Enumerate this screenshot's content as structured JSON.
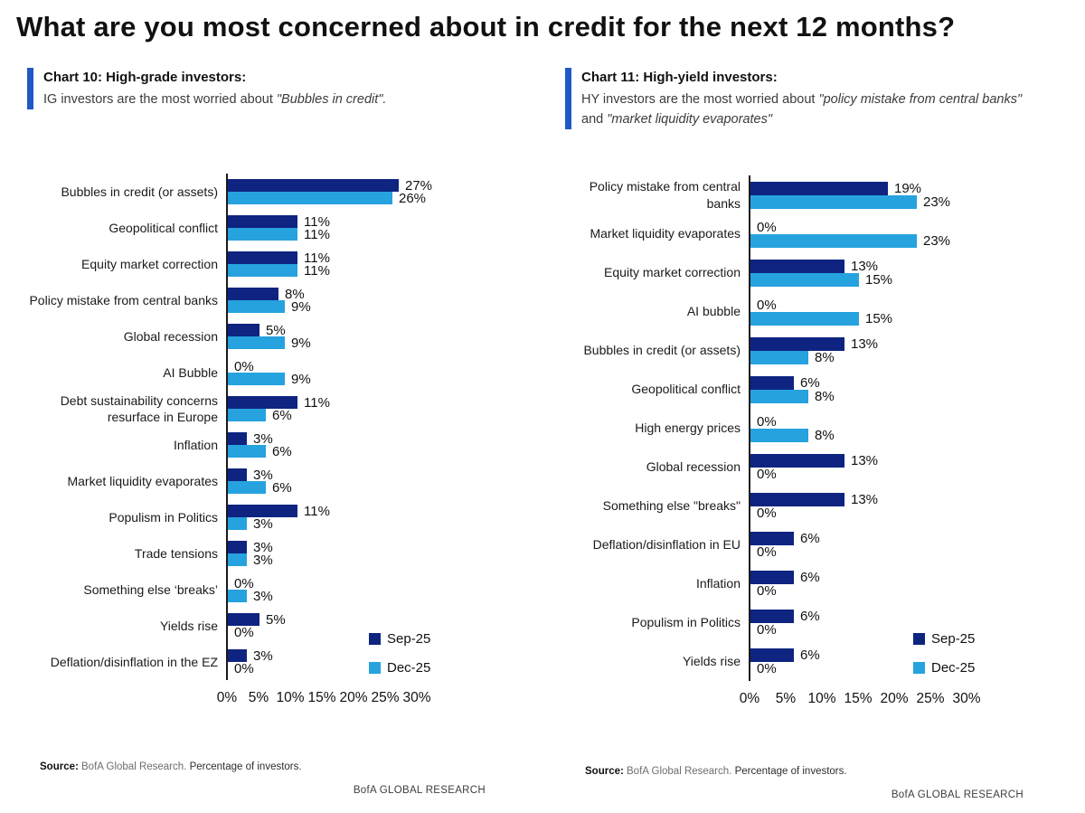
{
  "page_title": "What are you most concerned about in credit for the next 12 months?",
  "colors": {
    "sep_25_navy": "#0E2480",
    "dec_25_light_blue": "#26A2DF",
    "accent_bar_blue": "#2059C6",
    "axis_black": "#1A1A1A"
  },
  "panels": [
    {
      "heading": "Chart 10: High-grade investors:",
      "subtitle_segments": [
        {
          "text": "IG investors are the most worried about ",
          "style": ""
        },
        {
          "text": "\"Bubbles in credit\".",
          "style": "italic"
        }
      ],
      "source_segments": [
        {
          "text": "Source: ",
          "style": "bold"
        },
        {
          "text": "BofA Global Research. ",
          "style": "gray"
        },
        {
          "text": "Percentage of investors.",
          "style": ""
        }
      ],
      "brand_footer": "BofA GLOBAL RESEARCH"
    },
    {
      "heading": "Chart 11: High-yield investors:",
      "subtitle_segments": [
        {
          "text": "HY investors are the most worried about ",
          "style": ""
        },
        {
          "text": "\"policy mistake from central banks\"",
          "style": "italic"
        },
        {
          "text": " and ",
          "style": ""
        },
        {
          "text": "\"market liquidity evaporates\"",
          "style": "italic"
        }
      ],
      "source_segments": [
        {
          "text": "Source: ",
          "style": "bold"
        },
        {
          "text": "BofA Global Research. ",
          "style": "gray"
        },
        {
          "text": "Percentage of investors.",
          "style": ""
        }
      ],
      "brand_footer": "BofA GLOBAL RESEARCH"
    }
  ],
  "chart_data": [
    {
      "type": "bar",
      "orientation": "horizontal",
      "title": "Chart 10: High-grade investors",
      "categories": [
        "Bubbles in credit (or assets)",
        "Geopolitical conflict",
        "Equity market correction",
        "Policy mistake from central banks",
        "Global recession",
        "AI Bubble",
        "Debt sustainability concerns resurface in Europe",
        "Inflation",
        "Market liquidity evaporates",
        "Populism in Politics",
        "Trade tensions",
        "Something else ‘breaks’",
        "Yields rise",
        "Deflation/disinflation in the EZ"
      ],
      "series": [
        {
          "name": "Sep-25",
          "color": "#0E2480",
          "values": [
            27,
            11,
            11,
            8,
            5,
            0,
            11,
            3,
            3,
            11,
            3,
            0,
            5,
            3
          ]
        },
        {
          "name": "Dec-25",
          "color": "#26A2DF",
          "values": [
            26,
            11,
            11,
            9,
            9,
            9,
            6,
            6,
            6,
            3,
            3,
            3,
            0,
            0
          ]
        }
      ],
      "xlim": [
        0,
        30
      ],
      "xticks": [
        "0%",
        "5%",
        "10%",
        "15%",
        "20%",
        "25%",
        "30%"
      ],
      "value_suffix": "%",
      "xlabel": "",
      "ylabel": "",
      "grid": false,
      "legend_position": "inside-right"
    },
    {
      "type": "bar",
      "orientation": "horizontal",
      "title": "Chart 11: High-yield investors",
      "categories": [
        "Policy mistake from central banks",
        "Market liquidity evaporates",
        "Equity market correction",
        "AI bubble",
        "Bubbles in credit (or assets)",
        "Geopolitical conflict",
        "High energy prices",
        "Global recession",
        "Something else \"breaks\"",
        "Deflation/disinflation in EU",
        "Inflation",
        "Populism in Politics",
        "Yields rise"
      ],
      "series": [
        {
          "name": "Sep-25",
          "color": "#0E2480",
          "values": [
            19,
            0,
            13,
            0,
            13,
            6,
            0,
            13,
            13,
            6,
            6,
            6,
            6
          ]
        },
        {
          "name": "Dec-25",
          "color": "#26A2DF",
          "values": [
            23,
            23,
            15,
            15,
            8,
            8,
            8,
            0,
            0,
            0,
            0,
            0,
            0
          ]
        }
      ],
      "xlim": [
        0,
        30
      ],
      "xticks": [
        "0%",
        "5%",
        "10%",
        "15%",
        "20%",
        "25%",
        "30%"
      ],
      "value_suffix": "%",
      "xlabel": "",
      "ylabel": "",
      "grid": false,
      "legend_position": "inside-right"
    }
  ]
}
